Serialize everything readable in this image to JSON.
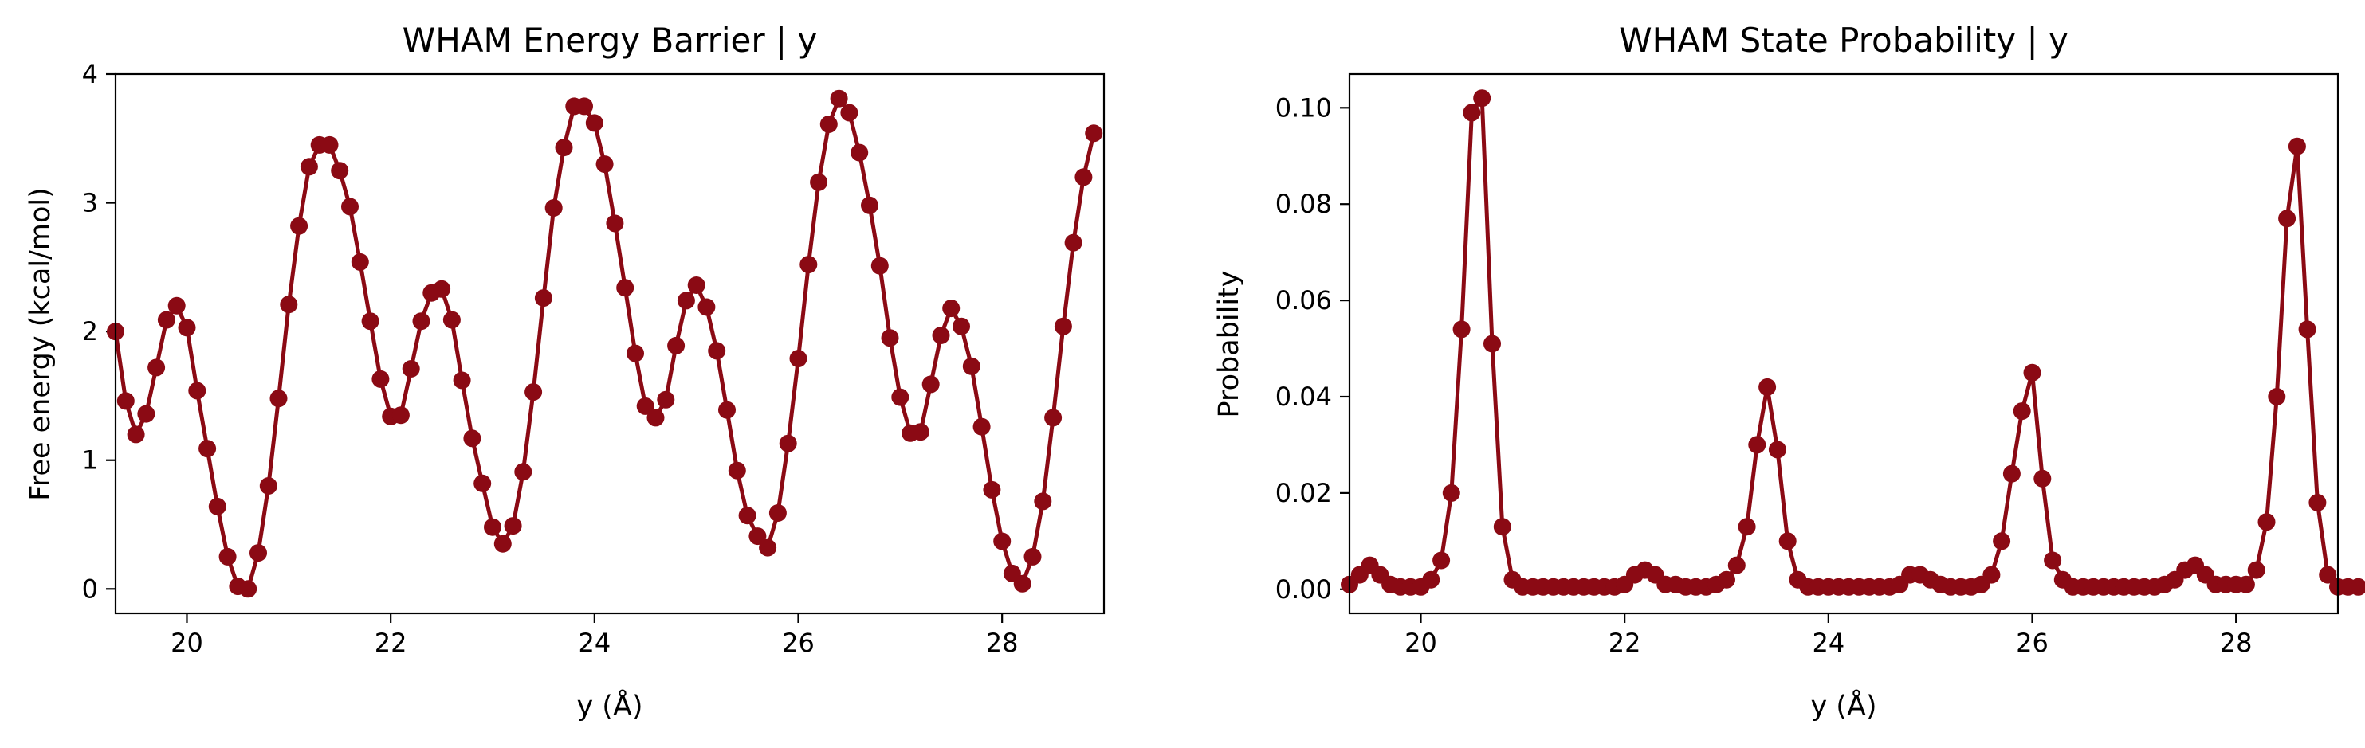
{
  "chart_data": [
    {
      "type": "line",
      "title": "WHAM Energy Barrier | y",
      "xlabel": "y (Å)",
      "ylabel": "Free energy (kcal/mol)",
      "xlim": [
        19.3,
        29.0
      ],
      "ylim": [
        -0.19,
        4.0
      ],
      "xticks": [
        20,
        22,
        24,
        26,
        28
      ],
      "yticks": [
        0,
        1,
        2,
        3,
        4
      ],
      "color": "#8b0a14",
      "x_start": 19.3,
      "x_step": 0.1,
      "series": [
        {
          "values": [
            2.0,
            1.46,
            1.2,
            1.36,
            1.72,
            2.09,
            2.2,
            2.03,
            1.54,
            1.09,
            0.64,
            0.25,
            0.02,
            0.0,
            0.28,
            0.8,
            1.48,
            2.21,
            2.82,
            3.28,
            3.45,
            3.45,
            3.25,
            2.97,
            2.54,
            2.08,
            1.63,
            1.34,
            1.35,
            1.71,
            2.08,
            2.3,
            2.33,
            2.09,
            1.62,
            1.17,
            0.82,
            0.48,
            0.35,
            0.49,
            0.91,
            1.53,
            2.26,
            2.96,
            3.43,
            3.75,
            3.75,
            3.62,
            3.3,
            2.84,
            2.34,
            1.83,
            1.42,
            1.33,
            1.47,
            1.89,
            2.24,
            2.36,
            2.19,
            1.85,
            1.39,
            0.92,
            0.57,
            0.41,
            0.32,
            0.59,
            1.13,
            1.79,
            2.52,
            3.16,
            3.61,
            3.81,
            3.7,
            3.39,
            2.98,
            2.51,
            1.95,
            1.49,
            1.21,
            1.22,
            1.59,
            1.97,
            2.18,
            2.04,
            1.73,
            1.26,
            0.77,
            0.37,
            0.12,
            0.04,
            0.25,
            0.68,
            1.33,
            2.04,
            2.69,
            3.2,
            3.54
          ]
        }
      ]
    },
    {
      "type": "line",
      "title": "WHAM State Probability | y",
      "xlabel": "y (Å)",
      "ylabel": "Probability",
      "xlim": [
        19.3,
        29.0
      ],
      "ylim": [
        -0.005,
        0.107
      ],
      "xticks": [
        20,
        22,
        24,
        26,
        28
      ],
      "yticks": [
        0.0,
        0.02,
        0.04,
        0.06,
        0.08,
        0.1
      ],
      "ytick_labels": [
        "0.00",
        "0.02",
        "0.04",
        "0.06",
        "0.08",
        "0.10"
      ],
      "color": "#8b0a14",
      "x_start": 19.3,
      "x_step": 0.1,
      "series": [
        {
          "values": [
            0.001,
            0.003,
            0.005,
            0.003,
            0.001,
            0.0005,
            0.0005,
            0.0005,
            0.002,
            0.006,
            0.02,
            0.054,
            0.099,
            0.102,
            0.051,
            0.013,
            0.002,
            0.0005,
            0.0005,
            0.0005,
            0.0005,
            0.0005,
            0.0005,
            0.0005,
            0.0005,
            0.0005,
            0.0005,
            0.001,
            0.003,
            0.004,
            0.003,
            0.001,
            0.001,
            0.0005,
            0.0005,
            0.0005,
            0.001,
            0.002,
            0.005,
            0.013,
            0.03,
            0.042,
            0.029,
            0.01,
            0.002,
            0.0005,
            0.0005,
            0.0005,
            0.0005,
            0.0005,
            0.0005,
            0.0005,
            0.0005,
            0.0005,
            0.001,
            0.003,
            0.003,
            0.002,
            0.001,
            0.0005,
            0.0005,
            0.0005,
            0.001,
            0.003,
            0.01,
            0.024,
            0.037,
            0.045,
            0.023,
            0.006,
            0.002,
            0.0005,
            0.0005,
            0.0005,
            0.0005,
            0.0005,
            0.0005,
            0.0005,
            0.0005,
            0.0005,
            0.001,
            0.002,
            0.004,
            0.005,
            0.003,
            0.001,
            0.001,
            0.001,
            0.001,
            0.004,
            0.014,
            0.04,
            0.077,
            0.092,
            0.054,
            0.018,
            0.003,
            0.0005,
            0.0005,
            0.0005
          ]
        }
      ]
    }
  ]
}
